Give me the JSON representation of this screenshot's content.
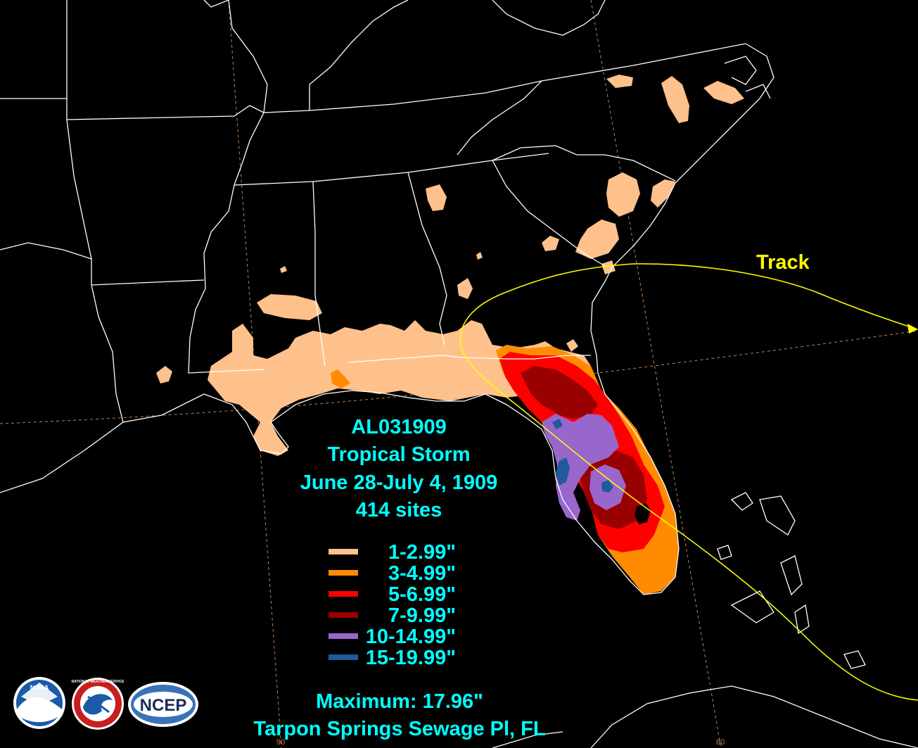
{
  "storm": {
    "id": "AL031909",
    "type": "Tropical Storm",
    "dates": "June 28-July 4, 1909",
    "sites": "414 sites"
  },
  "track_label": "Track",
  "legend": [
    {
      "label": "1-2.99\"",
      "color": "#ffc18c"
    },
    {
      "label": "3-4.99\"",
      "color": "#ff8c00"
    },
    {
      "label": "5-6.99\"",
      "color": "#ff0000"
    },
    {
      "label": "7-9.99\"",
      "color": "#990000"
    },
    {
      "label": "10-14.99\"",
      "color": "#9966cc"
    },
    {
      "label": "15-19.99\"",
      "color": "#1f5a9a"
    }
  ],
  "maximum": "Maximum: 17.96\"",
  "max_location": "Tarpon Springs Sewage Pl, FL",
  "logos": {
    "noaa": "NOAA",
    "nws": "NATIONAL WEATHER SERVICE",
    "ncep": "NCEP"
  },
  "grid_labels": {
    "lon90": "90",
    "lon80": "80"
  },
  "colors": {
    "background": "#000000",
    "boundaries": "#ffffff",
    "track": "#ffff00",
    "grid": "#c8804a",
    "text": "#00ffff"
  }
}
